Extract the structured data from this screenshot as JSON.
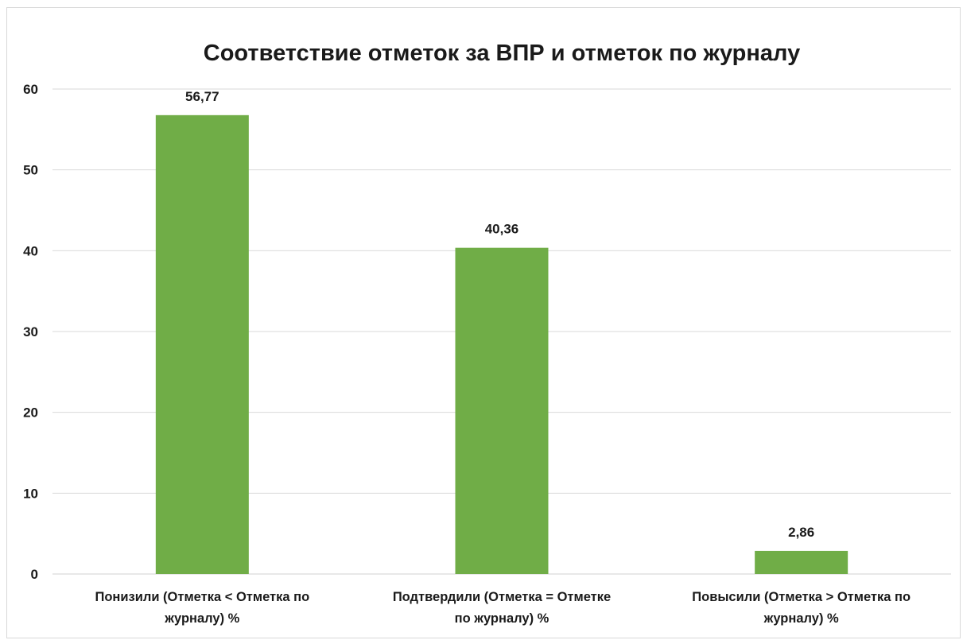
{
  "chart_data": {
    "type": "bar",
    "title": "Соответствие отметок за ВПР и отметок по журналу",
    "xlabel": "",
    "ylabel": "",
    "categories": [
      [
        "Понизили (Отметка < Отметка по",
        "журналу) %"
      ],
      [
        "Подтвердили (Отметка = Отметке",
        "по журналу) %"
      ],
      [
        "Повысили (Отметка > Отметка по",
        "журналу) %"
      ]
    ],
    "values": [
      56.77,
      40.36,
      2.86
    ],
    "data_labels": [
      "56,77",
      "40,36",
      "2,86"
    ],
    "ylim": [
      0,
      60
    ],
    "yticks": [
      0,
      10,
      20,
      30,
      40,
      50,
      60
    ],
    "grid": true,
    "legend": "none",
    "colors": {
      "bar": "#70ad47",
      "grid": "#d9d9d9",
      "text": "#1a1a1a"
    }
  }
}
